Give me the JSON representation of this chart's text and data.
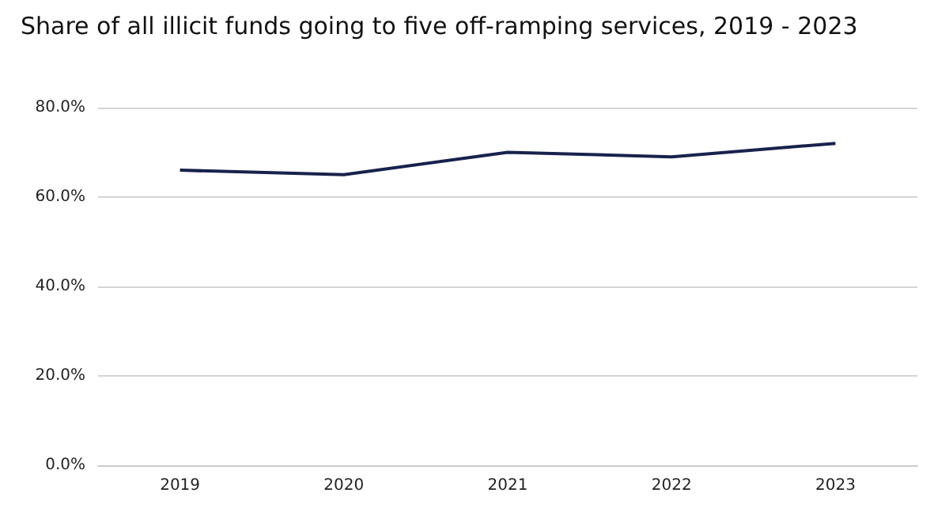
{
  "chart_data": {
    "type": "line",
    "title": "Share of all illicit funds going to five off-ramping services, 2019 - 2023",
    "categories": [
      "2019",
      "2020",
      "2021",
      "2022",
      "2023"
    ],
    "series": [
      {
        "color": "#17224d",
        "values": [
          66,
          65,
          70,
          69,
          72
        ]
      }
    ],
    "ylim": [
      0,
      80
    ],
    "yticks": [
      {
        "value": 0,
        "label": "0.0%"
      },
      {
        "value": 20,
        "label": "20.0%"
      },
      {
        "value": 40,
        "label": "40.0%"
      },
      {
        "value": 60,
        "label": "60.0%"
      },
      {
        "value": 80,
        "label": "80.0%"
      }
    ],
    "grid": "y",
    "marker": "none",
    "line_style": "solid"
  }
}
